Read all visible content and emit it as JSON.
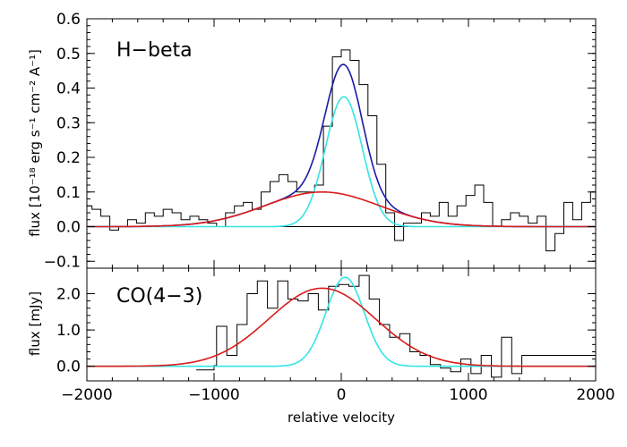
{
  "chart_data": [
    {
      "type": "line",
      "panel_label": "H−beta",
      "ylabel": "flux [10⁻¹⁸ erg s⁻¹ cm⁻² A⁻¹]",
      "xlim": [
        -2000,
        2000
      ],
      "ylim": [
        -0.12,
        0.6
      ],
      "yticks": [
        -0.1,
        0.0,
        0.1,
        0.2,
        0.3,
        0.4,
        0.5,
        0.6
      ],
      "ytick_labels": [
        "−0.1",
        "0.0",
        "0.1",
        "0.2",
        "0.3",
        "0.4",
        "0.5",
        "0.6"
      ],
      "zero_line": true,
      "series": [
        {
          "style": "step",
          "color": "#000000",
          "x": [
            -2000,
            -1960,
            -1890,
            -1820,
            -1750,
            -1680,
            -1610,
            -1540,
            -1470,
            -1400,
            -1330,
            -1260,
            -1190,
            -1120,
            -1050,
            -980,
            -910,
            -840,
            -770,
            -700,
            -630,
            -560,
            -490,
            -420,
            -350,
            -280,
            -210,
            -140,
            -70,
            0,
            70,
            140,
            210,
            280,
            350,
            420,
            490,
            560,
            630,
            700,
            770,
            840,
            910,
            980,
            1050,
            1120,
            1190,
            1260,
            1330,
            1400,
            1470,
            1540,
            1610,
            1680,
            1750,
            1820,
            1890,
            1960
          ],
          "values": [
            0.06,
            0.05,
            0.03,
            -0.01,
            0.0,
            0.02,
            0.01,
            0.04,
            0.03,
            0.05,
            0.04,
            0.02,
            0.03,
            0.02,
            0.01,
            0.0,
            0.04,
            0.06,
            0.07,
            0.05,
            0.1,
            0.13,
            0.15,
            0.13,
            0.1,
            0.1,
            0.12,
            0.29,
            0.49,
            0.51,
            0.48,
            0.41,
            0.32,
            0.18,
            0.04,
            -0.04,
            0.01,
            0.01,
            0.04,
            0.03,
            0.07,
            0.03,
            0.06,
            0.09,
            0.12,
            0.07,
            0.0,
            0.02,
            0.04,
            0.03,
            0.01,
            0.03,
            -0.07,
            -0.02,
            0.07,
            0.02,
            0.07,
            0.1
          ]
        },
        {
          "style": "gaussian",
          "color": "#1a1aa8",
          "components": [
            [
              0.375,
              20,
              145
            ],
            [
              0.1,
              -150,
              450
            ]
          ]
        },
        {
          "style": "gaussian",
          "color": "#33e5e5",
          "components": [
            [
              0.375,
              20,
              145
            ]
          ]
        },
        {
          "style": "gaussian",
          "color": "#d91a1a",
          "components": [
            [
              0.1,
              -150,
              450
            ]
          ]
        }
      ]
    },
    {
      "type": "line",
      "panel_label": "CO(4−3)",
      "xlabel": "relative velocity",
      "ylabel": "flux [mJy]",
      "xlim": [
        -2000,
        2000
      ],
      "ylim": [
        -0.4,
        2.7
      ],
      "yticks": [
        0.0,
        1.0,
        2.0
      ],
      "ytick_labels": [
        "0.0",
        "1.0",
        "2.0"
      ],
      "xticks": [
        -2000,
        -1000,
        0,
        1000,
        2000
      ],
      "xtick_labels": [
        "−2000",
        "−1000",
        "0",
        "1000",
        "2000"
      ],
      "series": [
        {
          "style": "step",
          "color": "#000000",
          "x": [
            -1140,
            -1000,
            -980,
            -900,
            -820,
            -740,
            -660,
            -580,
            -500,
            -420,
            -340,
            -260,
            -180,
            -100,
            -20,
            60,
            140,
            220,
            300,
            380,
            460,
            540,
            620,
            700,
            780,
            860,
            940,
            1020,
            1100,
            1180,
            1260,
            1340,
            1420,
            1500,
            1540
          ],
          "values": [
            -0.1,
            0.02,
            1.1,
            0.3,
            1.15,
            2.0,
            2.35,
            1.6,
            2.35,
            1.85,
            1.8,
            2.0,
            1.55,
            2.2,
            2.25,
            2.2,
            2.5,
            1.85,
            1.15,
            0.8,
            0.9,
            0.4,
            0.3,
            0.05,
            -0.05,
            -0.15,
            0.2,
            -0.2,
            0.3,
            -0.3,
            0.8,
            -0.2,
            0.3,
            0.3,
            0.3
          ]
        },
        {
          "style": "gaussian",
          "color": "#33e5e5",
          "components": [
            [
              2.45,
              30,
              150
            ]
          ]
        },
        {
          "style": "gaussian",
          "color": "#d91a1a",
          "components": [
            [
              2.15,
              -150,
              420
            ]
          ]
        }
      ]
    }
  ]
}
